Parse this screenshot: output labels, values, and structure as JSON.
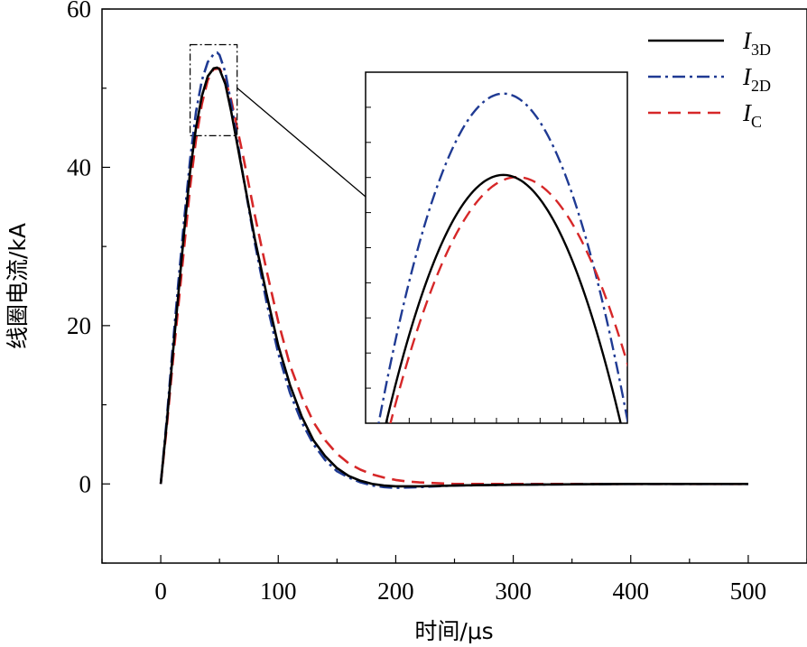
{
  "chart_data": {
    "type": "line",
    "xlabel": "时间/μs",
    "ylabel": "线圈电流/kA",
    "xlim": [
      -50,
      550
    ],
    "ylim": [
      -10,
      60
    ],
    "xticks": [
      "0",
      "100",
      "200",
      "300",
      "400",
      "500"
    ],
    "yticks": [
      "0",
      "20",
      "40",
      "60"
    ],
    "legend_position": "top-right",
    "grid": false,
    "series": [
      {
        "name": "I3D",
        "symbol": "I",
        "subscript": "3D",
        "color": "#000000",
        "dash": "solid",
        "x": [
          0,
          5,
          10,
          15,
          20,
          25,
          30,
          35,
          40,
          45,
          48,
          50,
          55,
          60,
          65,
          70,
          80,
          90,
          100,
          110,
          120,
          130,
          140,
          150,
          160,
          170,
          180,
          190,
          200,
          220,
          250,
          300,
          400,
          500
        ],
        "y": [
          0,
          7.5,
          16,
          24,
          32,
          39.5,
          45,
          49,
          51.5,
          52.5,
          52.6,
          52.4,
          50.5,
          47,
          43,
          39,
          31,
          24,
          17.5,
          12.5,
          8.5,
          5.5,
          3.5,
          2,
          1,
          0.4,
          0,
          -0.2,
          -0.3,
          -0.3,
          -0.2,
          -0.1,
          0,
          0
        ]
      },
      {
        "name": "I2D",
        "symbol": "I",
        "subscript": "2D",
        "color": "#1f3a93",
        "dash": "dashdot",
        "x": [
          0,
          5,
          10,
          15,
          20,
          25,
          30,
          35,
          40,
          45,
          48,
          50,
          55,
          60,
          65,
          70,
          80,
          90,
          100,
          110,
          120,
          130,
          140,
          150,
          160,
          170,
          180,
          190,
          200,
          220,
          250,
          300,
          400,
          500
        ],
        "y": [
          0,
          8,
          17,
          25.5,
          33.5,
          41,
          47,
          51,
          53.3,
          54.3,
          54.5,
          54.2,
          52,
          48,
          43.5,
          39,
          30.5,
          23,
          16.5,
          11.5,
          7.8,
          5,
          3,
          1.6,
          0.8,
          0.2,
          -0.2,
          -0.4,
          -0.5,
          -0.4,
          -0.2,
          -0.1,
          0,
          0
        ]
      },
      {
        "name": "IC",
        "symbol": "I",
        "subscript": "C",
        "color": "#d62728",
        "dash": "dashed",
        "x": [
          0,
          5,
          10,
          15,
          20,
          25,
          30,
          35,
          40,
          45,
          50,
          55,
          60,
          65,
          70,
          80,
          90,
          100,
          110,
          120,
          130,
          140,
          150,
          160,
          170,
          180,
          190,
          200,
          210,
          220,
          250,
          300,
          400,
          500
        ],
        "y": [
          0,
          7,
          15,
          22.5,
          30,
          37.5,
          43.5,
          48,
          51,
          52.4,
          52.5,
          51,
          48.5,
          45,
          41.5,
          34,
          27,
          20.5,
          15,
          11,
          7.8,
          5.5,
          3.8,
          2.6,
          1.8,
          1.2,
          0.8,
          0.5,
          0.3,
          0.2,
          0,
          0,
          0,
          0
        ]
      }
    ]
  }
}
